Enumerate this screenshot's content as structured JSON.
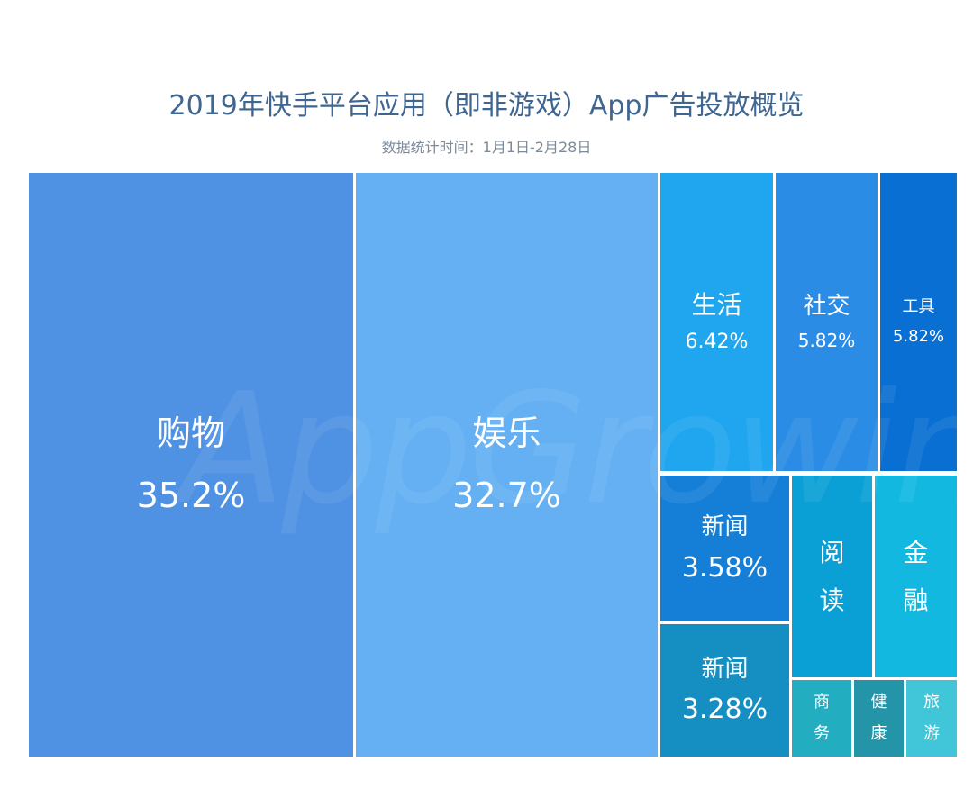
{
  "chart_data": {
    "type": "treemap",
    "title": "2019年快手平台应用（即非游戏）App广告投放概览",
    "subtitle": "数据统计时间：1月1日-2月28日",
    "items": [
      {
        "name": "购物",
        "value_label": "35.2%",
        "value": 35.2,
        "color": "#4f92e4"
      },
      {
        "name": "娱乐",
        "value_label": "32.7%",
        "value": 32.7,
        "color": "#64b0f3"
      },
      {
        "name": "生活",
        "value_label": "6.42%",
        "value": 6.42,
        "color": "#1fa6ee"
      },
      {
        "name": "社交",
        "value_label": "5.82%",
        "value": 5.82,
        "color": "#2b8ce5"
      },
      {
        "name": "工具",
        "value_label": "5.82%",
        "value": 5.82,
        "color": "#0a6fd3"
      },
      {
        "name": "新闻",
        "value_label": "3.58%",
        "value": 3.58,
        "color": "#157fd8"
      },
      {
        "name": "新闻",
        "value_label": "3.28%",
        "value": 3.28,
        "color": "#158fc2"
      },
      {
        "name": "阅读",
        "value_label": "",
        "color": "#0aa0d6"
      },
      {
        "name": "金融",
        "value_label": "",
        "color": "#12b8e0"
      },
      {
        "name": "商务",
        "value_label": "",
        "color": "#22adc0"
      },
      {
        "name": "健康",
        "value_label": "",
        "color": "#2495a8"
      },
      {
        "name": "旅游",
        "value_label": "",
        "color": "#40c6d8"
      }
    ]
  },
  "watermark": "AppGrowing"
}
